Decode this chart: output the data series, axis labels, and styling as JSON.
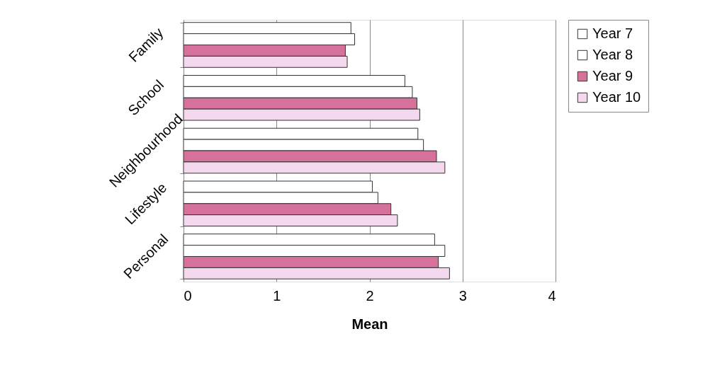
{
  "chart_data": {
    "type": "bar",
    "orientation": "horizontal",
    "xlabel": "Mean",
    "categories": [
      "Family",
      "School",
      "Neighbourhood",
      "Lifestyle",
      "Personal"
    ],
    "series": [
      {
        "name": "Year 7",
        "color": "#ffffff",
        "values": [
          1.8,
          2.38,
          2.52,
          2.03,
          2.7
        ]
      },
      {
        "name": "Year 8",
        "color": "#ffffff",
        "values": [
          1.84,
          2.46,
          2.58,
          2.09,
          2.81
        ]
      },
      {
        "name": "Year 9",
        "color": "#d6719b",
        "values": [
          1.74,
          2.51,
          2.72,
          2.23,
          2.74
        ]
      },
      {
        "name": "Year 10",
        "color": "#f3d8ee",
        "values": [
          1.76,
          2.54,
          2.81,
          2.3,
          2.86
        ]
      }
    ],
    "xlim": [
      0,
      4
    ],
    "xticks": [
      0,
      1,
      2,
      3,
      4
    ],
    "grid": "x",
    "legend": "right"
  }
}
